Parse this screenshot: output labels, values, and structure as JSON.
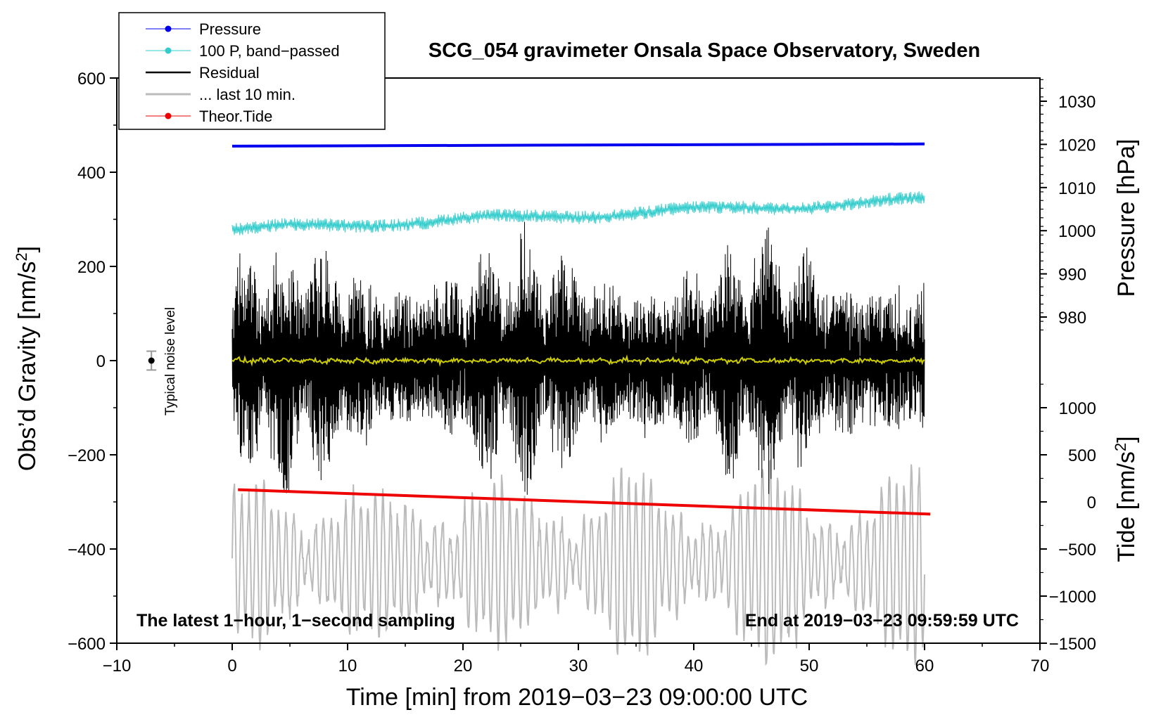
{
  "chart_data": {
    "type": "line",
    "title": "SCG_054 gravimeter Onsala Space Observatory, Sweden",
    "xlabel": "Time [min] from 2019−03−23 09:00:00 UTC",
    "ylabel_left": "Obs’d Gravity [nm/s",
    "ylabel_left_sup": "2",
    "ylabel_left_close": "]",
    "ylabel_right_pressure": "Pressure [hPa]",
    "ylabel_right_tide": "Tide [nm/s",
    "ylabel_right_tide_sup": "2",
    "ylabel_right_tide_close": "]",
    "xlim": [
      -10,
      70
    ],
    "ylim_left": [
      -600,
      600
    ],
    "x_ticks": [
      {
        "value": -10,
        "label": "−10"
      },
      {
        "value": 0,
        "label": "0"
      },
      {
        "value": 10,
        "label": "10"
      },
      {
        "value": 20,
        "label": "20"
      },
      {
        "value": 30,
        "label": "30"
      },
      {
        "value": 40,
        "label": "40"
      },
      {
        "value": 50,
        "label": "50"
      },
      {
        "value": 60,
        "label": "60"
      },
      {
        "value": 70,
        "label": "70"
      }
    ],
    "left_ticks": [
      {
        "value": 600,
        "label": "600"
      },
      {
        "value": 400,
        "label": "400"
      },
      {
        "value": 200,
        "label": "200"
      },
      {
        "value": 0,
        "label": "0"
      },
      {
        "value": -200,
        "label": "−200"
      },
      {
        "value": -400,
        "label": "−400"
      },
      {
        "value": -600,
        "label": "−600"
      }
    ],
    "pressure_ticks": [
      {
        "value": 1030,
        "label": "1030"
      },
      {
        "value": 1020,
        "label": "1020"
      },
      {
        "value": 1010,
        "label": "1010"
      },
      {
        "value": 1000,
        "label": "1000"
      },
      {
        "value": 990,
        "label": "990"
      },
      {
        "value": 980,
        "label": "980"
      }
    ],
    "tide_ticks": [
      {
        "value": 1000,
        "label": "1000"
      },
      {
        "value": 500,
        "label": "500"
      },
      {
        "value": 0,
        "label": "0"
      },
      {
        "value": -500,
        "label": "−500"
      },
      {
        "value": -1000,
        "label": "−1000"
      },
      {
        "value": -1500,
        "label": "−1500"
      }
    ],
    "series": [
      {
        "name": "Pressure",
        "color": "#0000ee",
        "axis": "pressure",
        "x_range": [
          0,
          60
        ],
        "start": 1019.6,
        "end": 1020.1
      },
      {
        "name": "100 P, band−passed",
        "color": "#33cccc",
        "axis": "gravity",
        "x_range": [
          0,
          60
        ],
        "start": 278,
        "end": 340,
        "amplitude": 18
      },
      {
        "name": "Residual",
        "color": "#000000",
        "axis": "gravity",
        "x_range": [
          0,
          60
        ],
        "mean": 0,
        "amplitude_min": 60,
        "amplitude_max": 280
      },
      {
        "name": "... last 10 min.",
        "color": "#bbbbbb",
        "axis": "gravity",
        "x_range": [
          0,
          60
        ],
        "center": -430,
        "amplitude_min": 60,
        "amplitude_max": 200
      },
      {
        "name": "Theor.Tide",
        "color": "#ee0000",
        "axis": "tide",
        "x_range": [
          0.5,
          60.5
        ],
        "start": 130,
        "end": -130
      },
      {
        "name": "Residual mean",
        "color": "#cccc00",
        "axis": "gravity",
        "x_range": [
          0,
          60
        ],
        "mean": 0,
        "amplitude": 4
      }
    ],
    "noise_marker": {
      "x": -7,
      "y": 0,
      "error": 20,
      "label": "Typical noise level"
    },
    "annotations": {
      "bottom_left": "The latest 1−hour, 1−second sampling",
      "bottom_right": "End at 2019−03−23 09:59:59 UTC"
    },
    "legend": [
      {
        "label": "Pressure",
        "color": "#0000ee",
        "marker": true
      },
      {
        "label": "100 P, band−passed",
        "color": "#33cccc",
        "marker": true
      },
      {
        "label": "Residual",
        "color": "#000000",
        "marker": false
      },
      {
        "label": "... last 10 min.",
        "color": "#bbbbbb",
        "marker": false
      },
      {
        "label": "Theor.Tide",
        "color": "#ee0000",
        "marker": true
      }
    ],
    "legend_position": "top-left"
  }
}
